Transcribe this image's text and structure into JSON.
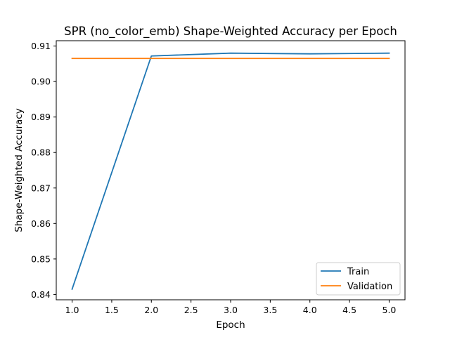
{
  "chart_data": {
    "type": "line",
    "title": "SPR (no_color_emb) Shape-Weighted Accuracy per Epoch",
    "xlabel": "Epoch",
    "ylabel": "Shape-Weighted Accuracy",
    "xlim": [
      0.8,
      5.2
    ],
    "ylim": [
      0.8385,
      0.9115
    ],
    "xticks": [
      1.0,
      1.5,
      2.0,
      2.5,
      3.0,
      3.5,
      4.0,
      4.5,
      5.0
    ],
    "xtick_labels": [
      "1.0",
      "1.5",
      "2.0",
      "2.5",
      "3.0",
      "3.5",
      "4.0",
      "4.5",
      "5.0"
    ],
    "yticks": [
      0.84,
      0.85,
      0.86,
      0.87,
      0.88,
      0.89,
      0.9,
      0.91
    ],
    "ytick_labels": [
      "0.84",
      "0.85",
      "0.86",
      "0.87",
      "0.88",
      "0.89",
      "0.90",
      "0.91"
    ],
    "x": [
      1,
      2,
      3,
      4,
      5
    ],
    "series": [
      {
        "name": "Train",
        "color": "#1f77b4",
        "values": [
          0.8415,
          0.9072,
          0.908,
          0.9078,
          0.908
        ]
      },
      {
        "name": "Validation",
        "color": "#ff7f0e",
        "values": [
          0.9065,
          0.9065,
          0.9065,
          0.9065,
          0.9065
        ]
      }
    ],
    "grid": false,
    "legend_position": "lower-right"
  }
}
